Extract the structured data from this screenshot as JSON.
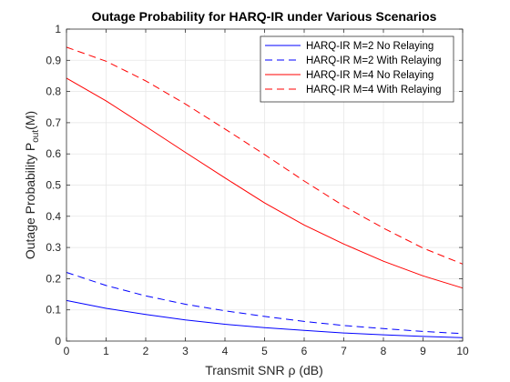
{
  "chart_data": {
    "type": "line",
    "title": "Outage Probability for HARQ-IR under Various Scenarios",
    "xlabel": "Transmit SNR ρ (dB)",
    "ylabel": {
      "main": "Outage Probability P",
      "sub": "out",
      "suffix": "(M)"
    },
    "xlim": [
      0,
      10
    ],
    "ylim": [
      0,
      1
    ],
    "xticks": [
      0,
      1,
      2,
      3,
      4,
      5,
      6,
      7,
      8,
      9,
      10
    ],
    "yticks": [
      0,
      0.1,
      0.2,
      0.3,
      0.4,
      0.5,
      0.6,
      0.7,
      0.8,
      0.9,
      1
    ],
    "grid": true,
    "legend_position": "top-right",
    "x": [
      0,
      1,
      2,
      3,
      4,
      5,
      6,
      7,
      8,
      9,
      10
    ],
    "series": [
      {
        "name": "HARQ-IR M=2 No Relaying",
        "color": "#0000ff",
        "dash": "solid",
        "values": [
          0.13,
          0.105,
          0.085,
          0.068,
          0.054,
          0.043,
          0.034,
          0.026,
          0.02,
          0.015,
          0.011
        ]
      },
      {
        "name": "HARQ-IR M=2 With Relaying",
        "color": "#0000ff",
        "dash": "dashed",
        "values": [
          0.22,
          0.178,
          0.145,
          0.118,
          0.097,
          0.079,
          0.063,
          0.05,
          0.04,
          0.031,
          0.024
        ]
      },
      {
        "name": "HARQ-IR M=4 No Relaying",
        "color": "#ff0000",
        "dash": "solid",
        "values": [
          0.843,
          0.77,
          0.688,
          0.605,
          0.523,
          0.443,
          0.372,
          0.311,
          0.256,
          0.209,
          0.17
        ]
      },
      {
        "name": "HARQ-IR M=4 With Relaying",
        "color": "#ff0000",
        "dash": "dashed",
        "values": [
          0.942,
          0.897,
          0.834,
          0.76,
          0.68,
          0.598,
          0.513,
          0.433,
          0.362,
          0.298,
          0.247
        ]
      }
    ]
  }
}
